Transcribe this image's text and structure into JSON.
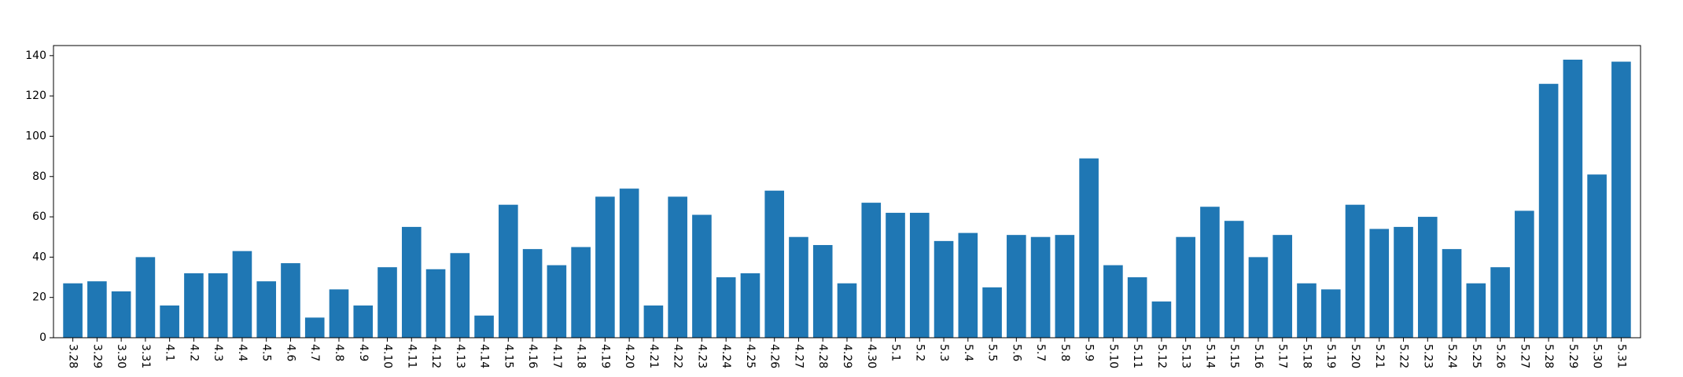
{
  "chart_data": {
    "type": "bar",
    "title": "",
    "xlabel": "",
    "ylabel": "",
    "categories": [
      "3.28",
      "3.29",
      "3.30",
      "3.31",
      "4.1",
      "4.2",
      "4.3",
      "4.4",
      "4.5",
      "4.6",
      "4.7",
      "4.8",
      "4.9",
      "4.10",
      "4.11",
      "4.12",
      "4.13",
      "4.14",
      "4.15",
      "4.16",
      "4.17",
      "4.18",
      "4.19",
      "4.20",
      "4.21",
      "4.22",
      "4.23",
      "4.24",
      "4.25",
      "4.26",
      "4.27",
      "4.28",
      "4.29",
      "4.30",
      "5.1",
      "5.2",
      "5.3",
      "5.4",
      "5.5",
      "5.6",
      "5.7",
      "5.8",
      "5.9",
      "5.10",
      "5.11",
      "5.12",
      "5.13",
      "5.14",
      "5.15",
      "5.16",
      "5.17",
      "5.18",
      "5.19",
      "5.20",
      "5.21",
      "5.22",
      "5.23",
      "5.24",
      "5.25",
      "5.26",
      "5.27",
      "5.28",
      "5.29",
      "5.30",
      "5.31"
    ],
    "values": [
      27,
      28,
      23,
      40,
      16,
      32,
      32,
      43,
      28,
      37,
      10,
      24,
      16,
      35,
      55,
      34,
      42,
      11,
      66,
      44,
      36,
      45,
      70,
      74,
      16,
      70,
      61,
      30,
      32,
      73,
      50,
      46,
      27,
      67,
      62,
      62,
      48,
      52,
      25,
      51,
      50,
      51,
      89,
      36,
      30,
      18,
      50,
      65,
      58,
      40,
      51,
      27,
      24,
      66,
      54,
      55,
      60,
      44,
      27,
      35,
      63,
      126,
      138,
      81,
      137
    ],
    "ylim": [
      0,
      145
    ],
    "yticks": [
      0,
      20,
      40,
      60,
      80,
      100,
      120,
      140
    ],
    "grid": false,
    "bar_color": "#1f77b4",
    "x_tick_rotation": "vertical"
  }
}
